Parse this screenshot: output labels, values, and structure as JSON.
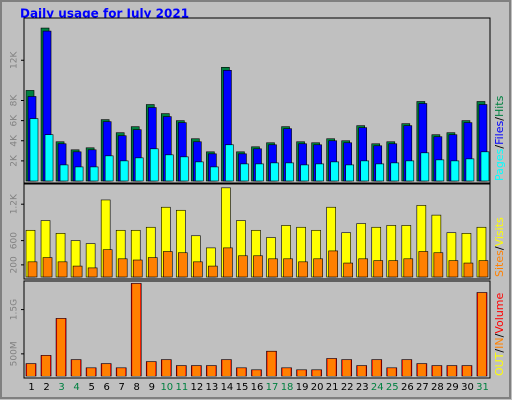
{
  "chart_data": [
    {
      "type": "bar",
      "title": "Daily usage for July 2021",
      "title_color": "#0000ff",
      "ylim": [
        0,
        16000
      ],
      "yticks": [
        {
          "value": 2000,
          "label": "2K"
        },
        {
          "value": 4000,
          "label": "4K"
        },
        {
          "value": 6000,
          "label": "6K"
        },
        {
          "value": 8000,
          "label": "8K"
        },
        {
          "value": 12000,
          "label": "12K"
        }
      ],
      "legend_separator": "/",
      "series": [
        {
          "name": "Hits",
          "color": "#008040",
          "values": [
            9000,
            15200,
            3900,
            3100,
            3300,
            6100,
            4800,
            5400,
            7600,
            6700,
            6000,
            4200,
            2900,
            11300,
            2900,
            3400,
            3800,
            5400,
            3900,
            3800,
            4200,
            4000,
            5500,
            3700,
            3900,
            5700,
            7900,
            4600,
            4800,
            6000,
            7900
          ]
        },
        {
          "name": "Files",
          "color": "#0000ff",
          "values": [
            8400,
            14900,
            3700,
            2900,
            3100,
            5900,
            4500,
            5100,
            7300,
            6400,
            5800,
            3900,
            2700,
            11000,
            2700,
            3200,
            3600,
            5200,
            3700,
            3600,
            4000,
            3800,
            5300,
            3500,
            3700,
            5500,
            7700,
            4400,
            4600,
            5800,
            7600
          ]
        },
        {
          "name": "Pages",
          "color": "#00ffff",
          "values": [
            6200,
            4600,
            1600,
            1400,
            1400,
            2500,
            2000,
            2300,
            3200,
            2600,
            2400,
            1900,
            1400,
            3600,
            1700,
            1700,
            1800,
            1800,
            1600,
            1700,
            1900,
            1600,
            2000,
            1700,
            1800,
            2000,
            2800,
            2100,
            2000,
            2200,
            2900
          ]
        }
      ]
    },
    {
      "type": "bar",
      "ylim": [
        0,
        1500
      ],
      "yticks": [
        200,
        600,
        {
          "value": 1200,
          "label": "1.2K"
        }
      ],
      "legend_separator": "/",
      "series": [
        {
          "name": "Visits",
          "color": "#ffff00",
          "values": [
            770,
            930,
            720,
            600,
            550,
            1270,
            770,
            770,
            820,
            1150,
            1100,
            680,
            480,
            1470,
            930,
            770,
            650,
            850,
            820,
            770,
            1150,
            730,
            880,
            820,
            850,
            850,
            1180,
            1020,
            730,
            720,
            820
          ]
        },
        {
          "name": "Sites",
          "color": "#ff8000",
          "values": [
            250,
            320,
            250,
            180,
            150,
            450,
            300,
            280,
            320,
            420,
            400,
            250,
            180,
            480,
            350,
            350,
            300,
            300,
            250,
            300,
            430,
            230,
            300,
            270,
            270,
            300,
            420,
            400,
            270,
            230,
            270
          ]
        }
      ]
    },
    {
      "type": "bar",
      "ylim": [
        0,
        2100
      ],
      "yticks": [
        {
          "value": 500,
          "label": "500M"
        },
        {
          "value": 1500,
          "label": "1.5G"
        }
      ],
      "legend_separator": "/",
      "categories": [
        "1",
        "2",
        "3",
        "4",
        "5",
        "6",
        "7",
        "8",
        "9",
        "10",
        "11",
        "12",
        "13",
        "14",
        "15",
        "16",
        "17",
        "18",
        "19",
        "20",
        "21",
        "22",
        "23",
        "24",
        "25",
        "26",
        "27",
        "28",
        "29",
        "30",
        "31"
      ],
      "category_colors": [
        "#000000",
        "#000000",
        "#008040",
        "#008040",
        "#000000",
        "#000000",
        "#000000",
        "#000000",
        "#000000",
        "#008040",
        "#008040",
        "#000000",
        "#000000",
        "#000000",
        "#000000",
        "#000000",
        "#008040",
        "#008040",
        "#000000",
        "#000000",
        "#000000",
        "#000000",
        "#000000",
        "#008040",
        "#008040",
        "#000000",
        "#000000",
        "#000000",
        "#000000",
        "#000000",
        "#008040"
      ],
      "series": [
        {
          "name": "Volume",
          "color": "#ff0000",
          "values": [
            280,
            465,
            1300,
            370,
            185,
            280,
            185,
            2090,
            325,
            370,
            235,
            235,
            235,
            370,
            185,
            140,
            560,
            185,
            140,
            140,
            395,
            370,
            235,
            370,
            185,
            370,
            280,
            235,
            235,
            235,
            1885
          ]
        },
        {
          "name": "IN",
          "color": "#ff8000",
          "values": [
            270,
            455,
            1290,
            360,
            175,
            270,
            175,
            2080,
            315,
            360,
            225,
            225,
            225,
            360,
            175,
            130,
            550,
            175,
            130,
            130,
            385,
            360,
            225,
            360,
            175,
            360,
            270,
            225,
            225,
            225,
            1875
          ]
        }
      ],
      "legend_extra": {
        "name": "OUT",
        "color": "#ffff00"
      }
    }
  ]
}
